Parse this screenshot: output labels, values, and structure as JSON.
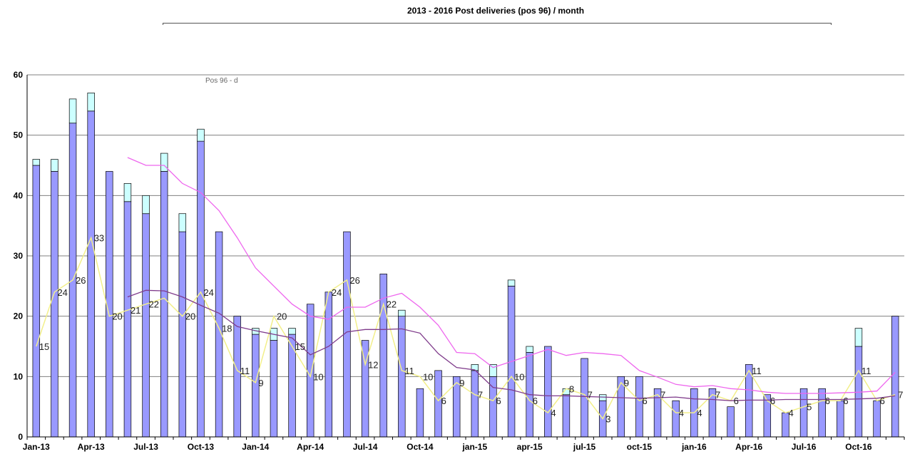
{
  "chart_data": {
    "type": "bar",
    "title": "2013 - 2016 Post deliveries (pos 96) / month",
    "xlabel": "",
    "ylabel": "",
    "ylim": [
      0,
      60
    ],
    "yticks": [
      0,
      10,
      20,
      30,
      40,
      50,
      60
    ],
    "grid": true,
    "colors": {
      "bars": "#9999ff",
      "bar_tops": "#ccffff",
      "yellow_line": "#f2ef8a",
      "magenta_line": "#ee66ee",
      "purple_line": "#7f3b8b",
      "grid": "#808080"
    },
    "categories": [
      "Jan-13",
      "Feb-13",
      "Mar-13",
      "Apr-13",
      "May-13",
      "Jun-13",
      "Jul-13",
      "Aug-13",
      "Sep-13",
      "Oct-13",
      "Nov-13",
      "Dec-13",
      "Jan-14",
      "Feb-14",
      "Mar-14",
      "Apr-14",
      "May-14",
      "Jun-14",
      "Jul-14",
      "Aug-14",
      "Sep-14",
      "Oct-14",
      "Nov-14",
      "Dec-14",
      "jan-15",
      "feb-15",
      "mar-15",
      "apr-15",
      "may-15",
      "jun-15",
      "jul-15",
      "aug-15",
      "sep-15",
      "oct-15",
      "nov-15",
      "dec-15",
      "jan-16",
      "feb-16",
      "Mar-16",
      "Apr-16",
      "May-16",
      "Jun-16",
      "Jul-16",
      "Aug-16",
      "Sep-16",
      "Oct-16",
      "Nov-16",
      "Dec-16"
    ],
    "x_tick_labels": [
      "Jan-13",
      "Apr-13",
      "Jul-13",
      "Oct-13",
      "Jan-14",
      "Apr-14",
      "Jul-14",
      "Oct-14",
      "jan-15",
      "apr-15",
      "jul-15",
      "oct-15",
      "jan-16",
      "Apr-16",
      "Jul-16",
      "Oct-16"
    ],
    "x_tick_every": 3,
    "series": [
      {
        "kind": "bar",
        "values": [
          45,
          44,
          52,
          54,
          44,
          39,
          37,
          44,
          34,
          49,
          34,
          20,
          17,
          16,
          17,
          22,
          24,
          34,
          16,
          27,
          20,
          8,
          11,
          10,
          11,
          10,
          25,
          14,
          15,
          7,
          13,
          6,
          10,
          10,
          8,
          6,
          8,
          8,
          5,
          12,
          7,
          4,
          8,
          8,
          6,
          15,
          6,
          20
        ]
      },
      {
        "kind": "bar-top",
        "values": [
          1,
          2,
          4,
          3,
          0,
          3,
          3,
          3,
          3,
          2,
          0,
          0,
          1,
          2,
          1,
          0,
          0,
          0,
          0,
          0,
          1,
          0,
          0,
          0,
          1,
          2,
          1,
          1,
          0,
          1,
          0,
          1,
          0,
          0,
          0,
          0,
          0,
          0,
          0,
          0,
          0,
          0,
          0,
          0,
          0,
          3,
          0,
          0
        ]
      },
      {
        "kind": "line",
        "values": [
          15,
          24,
          26,
          33,
          20,
          21,
          22,
          23,
          20,
          24,
          18,
          11,
          9,
          20,
          15,
          10,
          24,
          26,
          12,
          22,
          11,
          10,
          6,
          9,
          7,
          6,
          10,
          6,
          4,
          8,
          7,
          3,
          9,
          6,
          7,
          4,
          4,
          7,
          6,
          11,
          6,
          4,
          5,
          6,
          6,
          11,
          6,
          7
        ],
        "labels": [
          "15",
          "24",
          "26",
          "33",
          "20",
          "21",
          "22",
          "",
          "20",
          "24",
          "18",
          "11",
          "9",
          "20",
          "15",
          "10",
          "24",
          "26",
          "12",
          "22",
          "11",
          "10",
          "6",
          "9",
          "7",
          "6",
          "10",
          "6",
          "4",
          "8",
          "7",
          "3",
          "9",
          "6",
          "7",
          "4",
          "4",
          "7",
          "6",
          "11",
          "6",
          "4",
          "5",
          "6",
          "6",
          "11",
          "6",
          "7"
        ]
      },
      {
        "kind": "line",
        "values": [
          null,
          null,
          null,
          null,
          null,
          46.3,
          45,
          45,
          42,
          40.5,
          37.5,
          33,
          28,
          25,
          22,
          20,
          19.5,
          21.5,
          21.5,
          23,
          23.8,
          21.5,
          18.5,
          14,
          13.8,
          11.5,
          12.5,
          13.5,
          14.5,
          13.5,
          14,
          13.8,
          13.5,
          11,
          9.9,
          8.7,
          8.3,
          8.5,
          8,
          7.8,
          7.4,
          7.2,
          7.2,
          7.2,
          7.3,
          7.4,
          7.6,
          10.7
        ]
      },
      {
        "kind": "line",
        "values": [
          null,
          null,
          null,
          null,
          null,
          23.2,
          24.3,
          24.2,
          23.2,
          21.8,
          20.5,
          18.3,
          17.6,
          17,
          16.4,
          13.6,
          15,
          17.4,
          17.8,
          17.8,
          17.9,
          17.2,
          13.8,
          11.5,
          11.1,
          8.2,
          7.8,
          7,
          6.8,
          6.8,
          6.7,
          6.6,
          6.5,
          6.4,
          6.5,
          6.6,
          6.3,
          6.2,
          6,
          6.1,
          6.1,
          6.2,
          6.2,
          6.2,
          6.2,
          6.3,
          6.4,
          6.8
        ]
      }
    ],
    "legend_fragment": "Pos 96 - d"
  }
}
